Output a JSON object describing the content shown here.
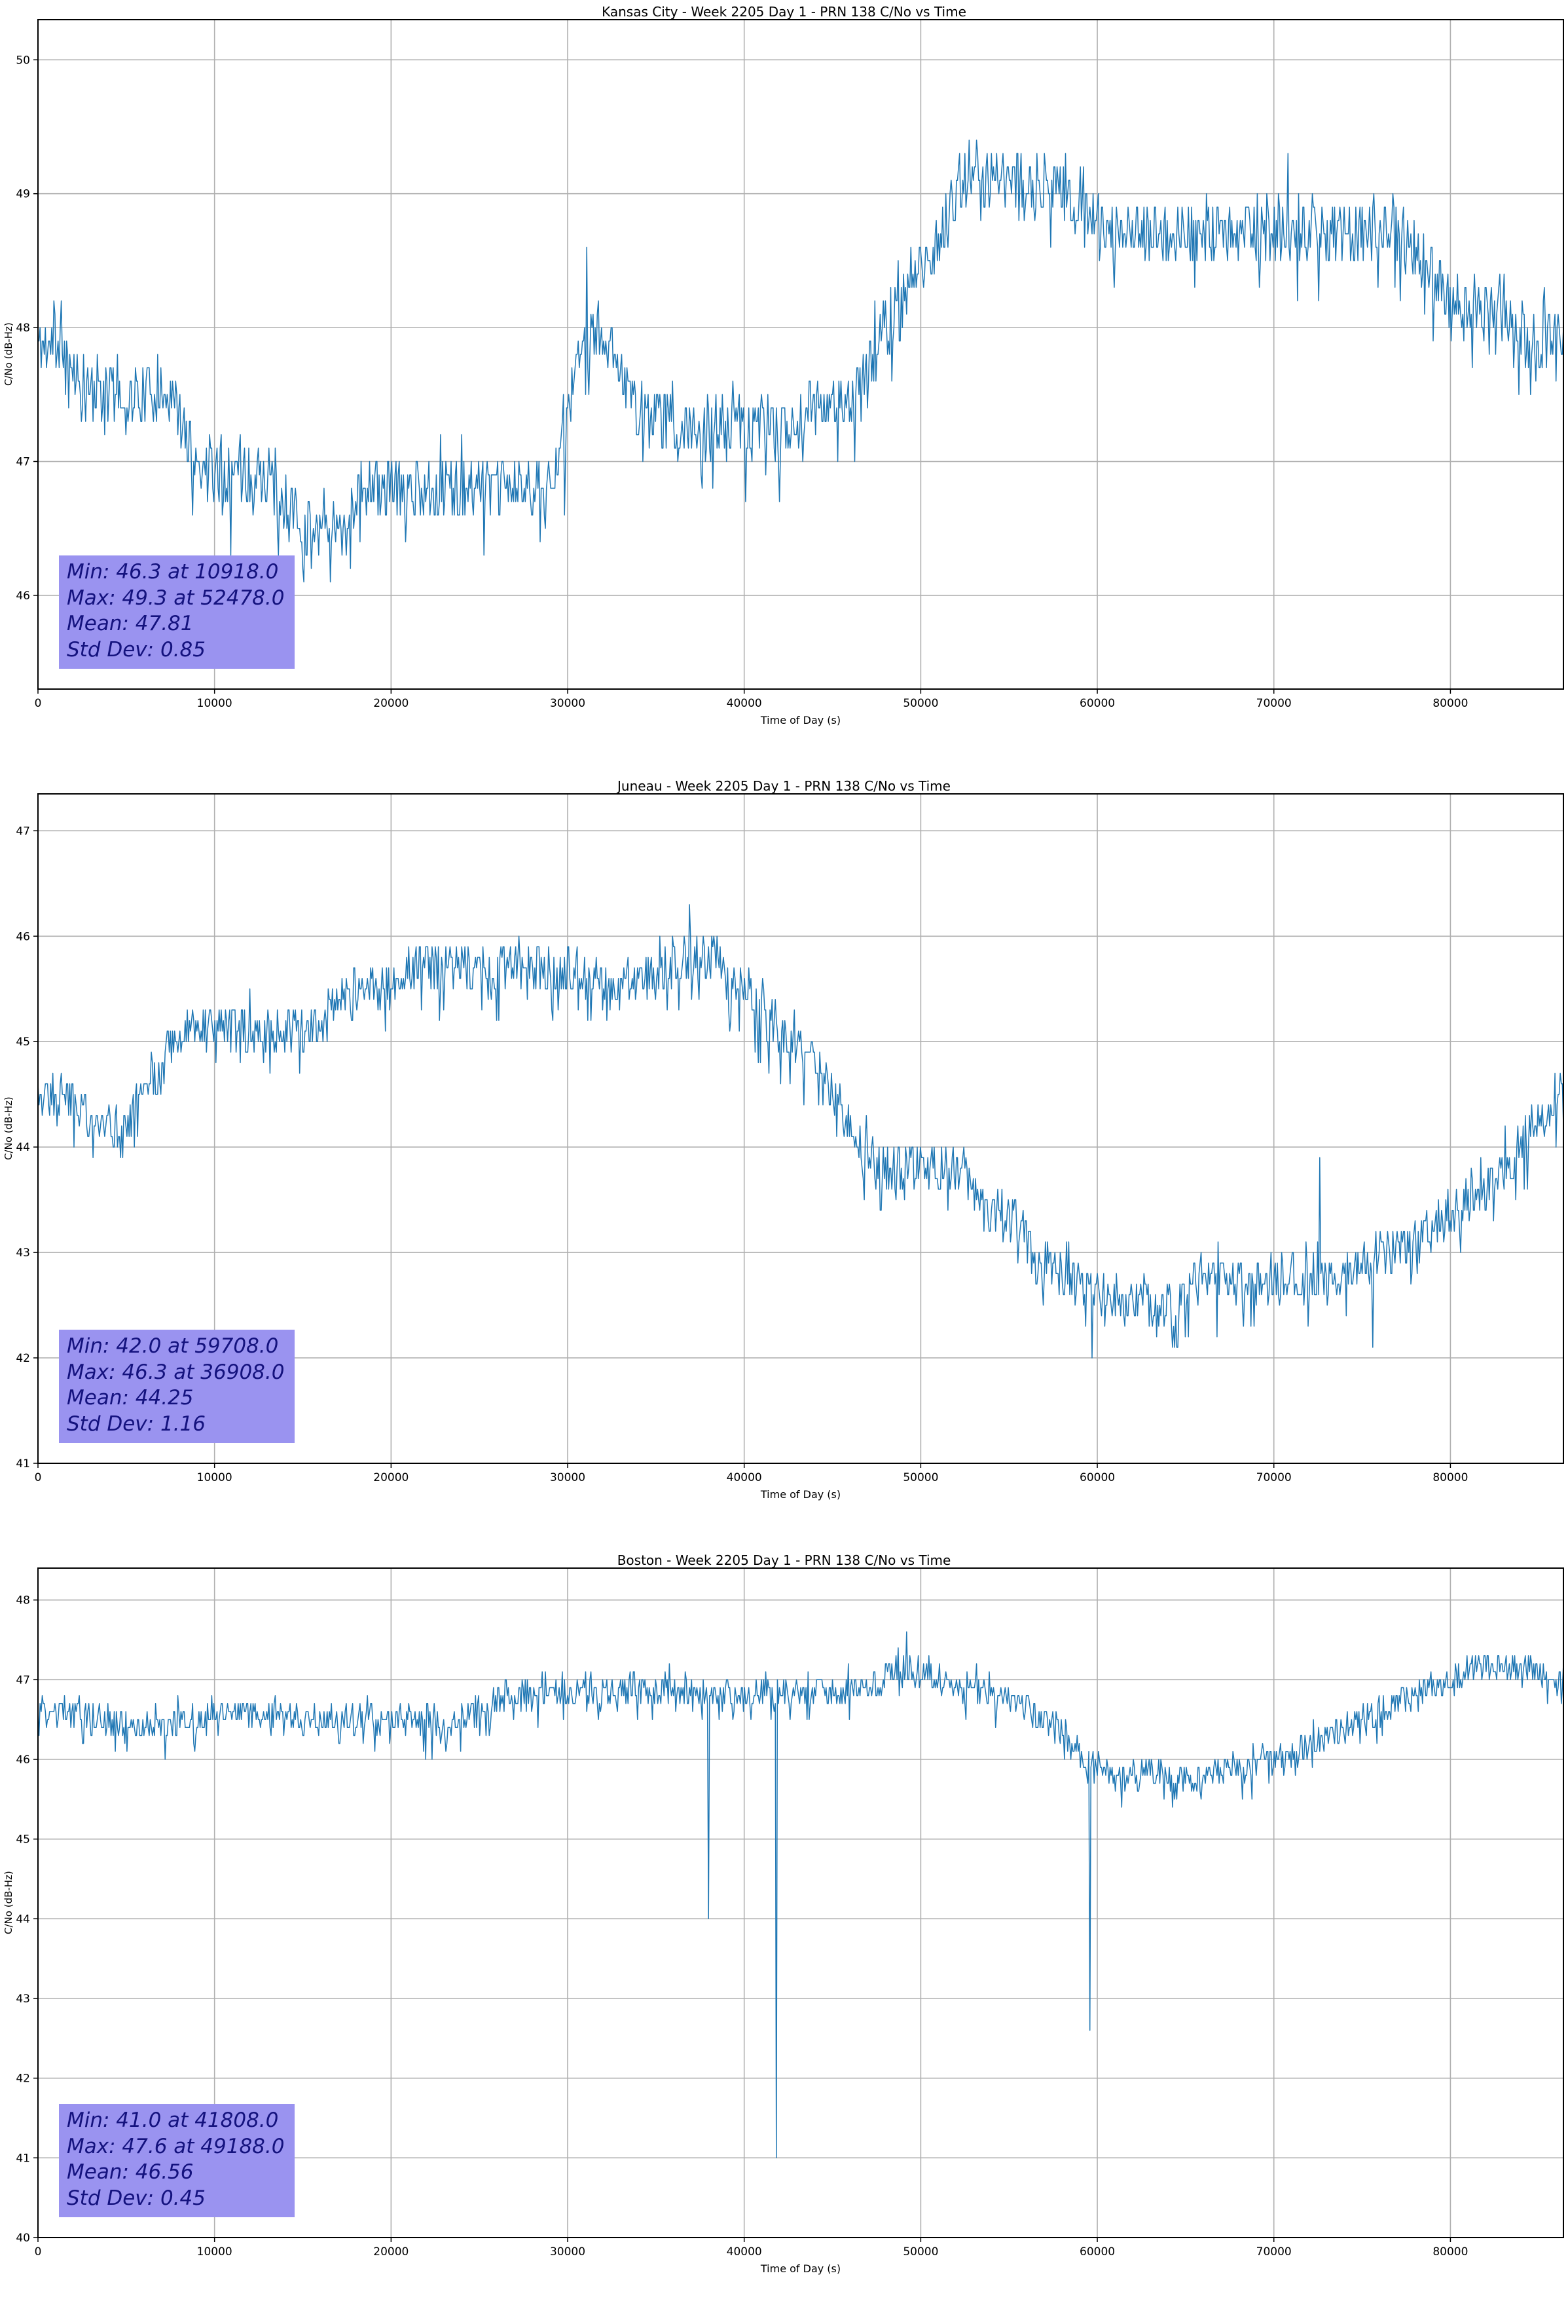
{
  "figure_count": 3,
  "chart_data": [
    {
      "type": "line",
      "title": "Kansas City - Week 2205 Day 1 - PRN 138 C/No vs Time",
      "xlabel": "Time of Day (s)",
      "ylabel": "C/No (dB-Hz)",
      "legend": "none",
      "grid": true,
      "xlim": [
        0,
        86400
      ],
      "ylim": [
        45.3,
        50.3
      ],
      "xticks": [
        0,
        10000,
        20000,
        30000,
        40000,
        50000,
        60000,
        70000,
        80000
      ],
      "yticks": [
        46,
        47,
        48,
        49,
        50
      ],
      "line_color": "#1f77b4",
      "grid_color": "#b0b0b0",
      "stats": {
        "min": 46.3,
        "min_time": 10918.0,
        "max": 49.3,
        "max_time": 52478.0,
        "mean": 47.81,
        "std_dev": 0.85
      },
      "stats_box": {
        "lines": [
          "Min: 46.3 at 10918.0",
          "Max: 49.3 at 52478.0",
          "Mean: 47.81",
          "Std Dev: 0.85"
        ],
        "bg": "#9a93f0",
        "text_color": "#14127e"
      },
      "noise_amp": 0.22,
      "seed": 11,
      "trend": [
        [
          0,
          47.9
        ],
        [
          1800,
          47.8
        ],
        [
          2500,
          47.5
        ],
        [
          7500,
          47.5
        ],
        [
          9000,
          47.0
        ],
        [
          9800,
          46.9
        ],
        [
          13000,
          46.9
        ],
        [
          13800,
          46.6
        ],
        [
          17300,
          46.5
        ],
        [
          18200,
          46.8
        ],
        [
          28500,
          46.8
        ],
        [
          29800,
          47.1
        ],
        [
          30800,
          47.9
        ],
        [
          31500,
          48.0
        ],
        [
          32800,
          47.8
        ],
        [
          33800,
          47.4
        ],
        [
          35000,
          47.3
        ],
        [
          42000,
          47.2
        ],
        [
          43500,
          47.4
        ],
        [
          46500,
          47.5
        ],
        [
          47500,
          47.9
        ],
        [
          49000,
          48.2
        ],
        [
          50500,
          48.5
        ],
        [
          51500,
          48.8
        ],
        [
          52500,
          49.1
        ],
        [
          57500,
          49.1
        ],
        [
          58500,
          48.9
        ],
        [
          60500,
          48.7
        ],
        [
          62000,
          48.7
        ],
        [
          77000,
          48.7
        ],
        [
          78500,
          48.5
        ],
        [
          80000,
          48.2
        ],
        [
          83000,
          48.1
        ],
        [
          84500,
          47.9
        ],
        [
          86400,
          47.9
        ]
      ],
      "spikes": [
        [
          10918,
          46.3
        ],
        [
          31050,
          48.6
        ],
        [
          52478,
          49.3
        ],
        [
          70800,
          49.3
        ]
      ]
    },
    {
      "type": "line",
      "title": "Juneau - Week 2205 Day 1 - PRN 138 C/No vs Time",
      "xlabel": "Time of Day (s)",
      "ylabel": "C/No (dB-Hz)",
      "legend": "none",
      "grid": true,
      "xlim": [
        0,
        86400
      ],
      "ylim": [
        41,
        47.35
      ],
      "xticks": [
        0,
        10000,
        20000,
        30000,
        40000,
        50000,
        60000,
        70000,
        80000
      ],
      "yticks": [
        41,
        42,
        43,
        44,
        45,
        46,
        47
      ],
      "line_color": "#1f77b4",
      "grid_color": "#b0b0b0",
      "stats": {
        "min": 42.0,
        "min_time": 59708.0,
        "max": 46.3,
        "max_time": 36908.0,
        "mean": 44.25,
        "std_dev": 1.16
      },
      "stats_box": {
        "lines": [
          "Min: 42.0 at 59708.0",
          "Max: 46.3 at 36908.0",
          "Mean: 44.25",
          "Std Dev: 1.16"
        ],
        "bg": "#9a93f0",
        "text_color": "#14127e"
      },
      "noise_amp": 0.22,
      "seed": 22,
      "trend": [
        [
          0,
          44.5
        ],
        [
          1200,
          44.6
        ],
        [
          2800,
          44.3
        ],
        [
          4200,
          44.2
        ],
        [
          5500,
          44.3
        ],
        [
          6500,
          44.6
        ],
        [
          7800,
          45.0
        ],
        [
          9000,
          45.1
        ],
        [
          15500,
          45.1
        ],
        [
          17000,
          45.4
        ],
        [
          19500,
          45.5
        ],
        [
          21000,
          45.7
        ],
        [
          30500,
          45.7
        ],
        [
          32500,
          45.5
        ],
        [
          34500,
          45.6
        ],
        [
          36500,
          45.8
        ],
        [
          38300,
          45.8
        ],
        [
          39500,
          45.5
        ],
        [
          41500,
          45.2
        ],
        [
          43500,
          44.9
        ],
        [
          45000,
          44.5
        ],
        [
          45800,
          44.3
        ],
        [
          46800,
          43.9
        ],
        [
          48000,
          43.8
        ],
        [
          52500,
          43.8
        ],
        [
          53500,
          43.4
        ],
        [
          55500,
          43.3
        ],
        [
          56500,
          42.9
        ],
        [
          58000,
          42.8
        ],
        [
          59500,
          42.6
        ],
        [
          60500,
          42.5
        ],
        [
          64500,
          42.5
        ],
        [
          66000,
          42.7
        ],
        [
          74500,
          42.8
        ],
        [
          76000,
          43.0
        ],
        [
          78500,
          43.1
        ],
        [
          80000,
          43.4
        ],
        [
          82000,
          43.6
        ],
        [
          83500,
          43.9
        ],
        [
          85000,
          44.2
        ],
        [
          86400,
          44.6
        ]
      ],
      "spikes": [
        [
          36908,
          46.3
        ],
        [
          59708,
          42.0
        ],
        [
          72600,
          43.9
        ],
        [
          75600,
          42.1
        ]
      ]
    },
    {
      "type": "line",
      "title": "Boston - Week 2205 Day 1 - PRN 138 C/No vs Time",
      "xlabel": "Time of Day (s)",
      "ylabel": "C/No (dB-Hz)",
      "legend": "none",
      "grid": true,
      "xlim": [
        0,
        86400
      ],
      "ylim": [
        40,
        48.4
      ],
      "xticks": [
        0,
        10000,
        20000,
        30000,
        40000,
        50000,
        60000,
        70000,
        80000
      ],
      "yticks": [
        40,
        41,
        42,
        43,
        44,
        45,
        46,
        47,
        48
      ],
      "line_color": "#1f77b4",
      "grid_color": "#b0b0b0",
      "stats": {
        "min": 41.0,
        "min_time": 41808.0,
        "max": 47.6,
        "max_time": 49188.0,
        "mean": 46.56,
        "std_dev": 0.45
      },
      "stats_box": {
        "lines": [
          "Min: 41.0 at 41808.0",
          "Max: 47.6 at 49188.0",
          "Mean: 46.56",
          "Std Dev: 0.45"
        ],
        "bg": "#9a93f0",
        "text_color": "#14127e"
      },
      "noise_amp": 0.18,
      "seed": 33,
      "trend": [
        [
          0,
          46.6
        ],
        [
          3000,
          46.5
        ],
        [
          6000,
          46.4
        ],
        [
          9000,
          46.5
        ],
        [
          12000,
          46.6
        ],
        [
          14000,
          46.5
        ],
        [
          21000,
          46.5
        ],
        [
          23000,
          46.4
        ],
        [
          25000,
          46.6
        ],
        [
          26500,
          46.8
        ],
        [
          32000,
          46.8
        ],
        [
          34000,
          46.9
        ],
        [
          40000,
          46.8
        ],
        [
          47000,
          46.9
        ],
        [
          48500,
          47.1
        ],
        [
          50500,
          47.1
        ],
        [
          52000,
          46.9
        ],
        [
          54500,
          46.8
        ],
        [
          56500,
          46.6
        ],
        [
          57800,
          46.4
        ],
        [
          58800,
          46.1
        ],
        [
          59800,
          45.9
        ],
        [
          61000,
          45.8
        ],
        [
          66500,
          45.8
        ],
        [
          68500,
          45.9
        ],
        [
          70500,
          46.0
        ],
        [
          72000,
          46.2
        ],
        [
          74000,
          46.4
        ],
        [
          76000,
          46.6
        ],
        [
          78000,
          46.8
        ],
        [
          79500,
          46.9
        ],
        [
          81000,
          47.1
        ],
        [
          82000,
          47.2
        ],
        [
          83000,
          47.1
        ],
        [
          84200,
          47.2
        ],
        [
          85300,
          47.0
        ],
        [
          86400,
          46.9
        ]
      ],
      "spikes": [
        [
          38000,
          44.0
        ],
        [
          41808,
          41.0
        ],
        [
          49188,
          47.6
        ],
        [
          59600,
          42.6
        ]
      ]
    }
  ]
}
